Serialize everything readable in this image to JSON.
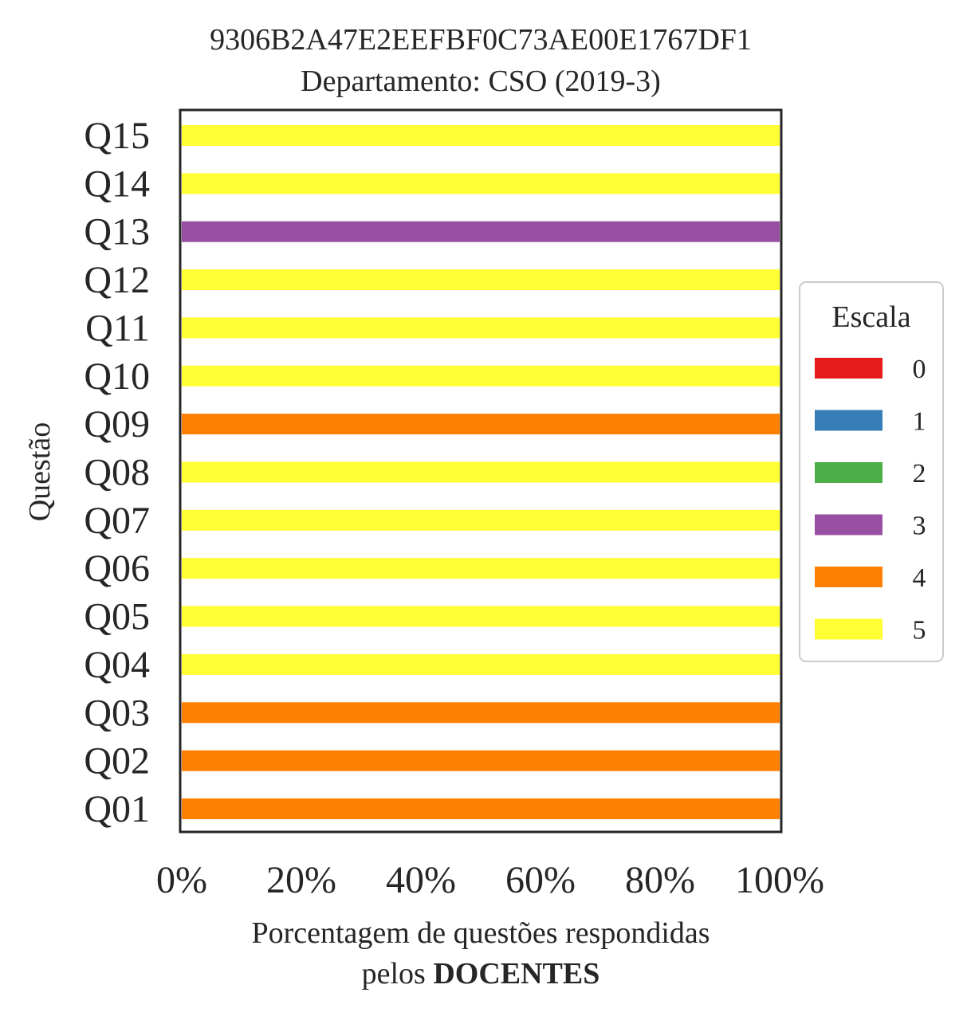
{
  "chart_data": {
    "type": "bar",
    "orientation": "horizontal",
    "stacked": true,
    "title": "9306B2A47E2EEFBF0C73AE00E1767DF1",
    "subtitle": "Departamento: CSO (2019-3)",
    "xlabel_line1": "Porcentagem de questões respondidas",
    "xlabel_line2_prefix": "pelos ",
    "xlabel_line2_bold": "DOCENTES",
    "ylabel": "Questão",
    "xlim": [
      0,
      100
    ],
    "xticks": [
      "0%",
      "20%",
      "40%",
      "60%",
      "80%",
      "100%"
    ],
    "grid": false,
    "legend": {
      "title": "Escala",
      "placement": "right",
      "entries": [
        {
          "label": "0",
          "color": "#e41a1c"
        },
        {
          "label": "1",
          "color": "#377eb8"
        },
        {
          "label": "2",
          "color": "#4daf4a"
        },
        {
          "label": "3",
          "color": "#984ea3"
        },
        {
          "label": "4",
          "color": "#ff7f00"
        },
        {
          "label": "5",
          "color": "#ffff33"
        }
      ]
    },
    "categories": [
      "Q01",
      "Q02",
      "Q03",
      "Q04",
      "Q05",
      "Q06",
      "Q07",
      "Q08",
      "Q09",
      "Q10",
      "Q11",
      "Q12",
      "Q13",
      "Q14",
      "Q15"
    ],
    "series": [
      {
        "name": "0",
        "values": [
          0,
          0,
          0,
          0,
          0,
          0,
          0,
          0,
          0,
          0,
          0,
          0,
          0,
          0,
          0
        ]
      },
      {
        "name": "1",
        "values": [
          0,
          0,
          0,
          0,
          0,
          0,
          0,
          0,
          0,
          0,
          0,
          0,
          0,
          0,
          0
        ]
      },
      {
        "name": "2",
        "values": [
          0,
          0,
          0,
          0,
          0,
          0,
          0,
          0,
          0,
          0,
          0,
          0,
          0,
          0,
          0
        ]
      },
      {
        "name": "3",
        "values": [
          0,
          0,
          0,
          0,
          0,
          0,
          0,
          0,
          0,
          0,
          0,
          0,
          100,
          0,
          0
        ]
      },
      {
        "name": "4",
        "values": [
          100,
          100,
          100,
          0,
          0,
          0,
          0,
          0,
          100,
          0,
          0,
          0,
          0,
          0,
          0
        ]
      },
      {
        "name": "5",
        "values": [
          0,
          0,
          0,
          100,
          100,
          100,
          100,
          100,
          0,
          100,
          100,
          100,
          0,
          100,
          100
        ]
      }
    ]
  }
}
